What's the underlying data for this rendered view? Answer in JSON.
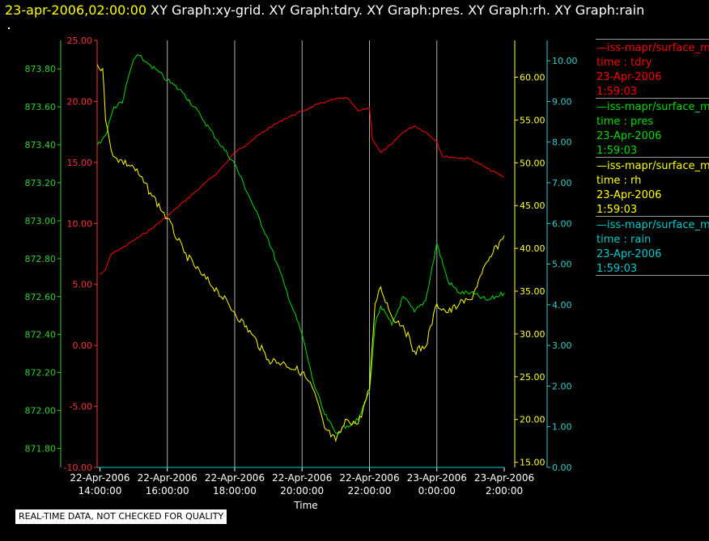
{
  "header": {
    "timestamp": "23-apr-2006,02:00:00",
    "plots": " XY Graph:xy-grid.  XY Graph:tdry.  XY Graph:pres.  XY Graph:rh.  XY Graph:rain"
  },
  "footer": {
    "quality_notice": "REAL-TIME DATA, NOT CHECKED FOR QUALITY"
  },
  "chart_data": {
    "type": "line",
    "title": "",
    "xlabel": "Time",
    "x_ticks": [
      "22-Apr-2006 14:00:00",
      "22-Apr-2006 16:00:00",
      "22-Apr-2006 18:00:00",
      "22-Apr-2006 20:00:00",
      "22-Apr-2006 22:00:00",
      "23-Apr-2006 0:00:00",
      "23-Apr-2006 2:00:00"
    ],
    "x_tick_date": [
      "22-Apr-2006",
      "22-Apr-2006",
      "22-Apr-2006",
      "22-Apr-2006",
      "22-Apr-2006",
      "23-Apr-2006",
      "23-Apr-2006"
    ],
    "x_tick_time": [
      "14:00:00",
      "16:00:00",
      "18:00:00",
      "20:00:00",
      "22:00:00",
      "0:00:00",
      "2:00:00"
    ],
    "x_range": [
      "22-Apr-2006 13:55",
      "23-Apr-2006 2:00"
    ],
    "grid": "vertical lines at x ticks",
    "axes": {
      "tdry": {
        "color": "#ff3333",
        "range": [
          -10,
          25
        ],
        "ticks": [
          "-10.00",
          "-5.00",
          "0.00",
          "5.00",
          "10.00",
          "15.00",
          "20.00",
          "25.00"
        ]
      },
      "pres": {
        "color": "#33cc33",
        "range": [
          871.7,
          873.95
        ],
        "ticks": [
          "871.80",
          "872.00",
          "872.20",
          "872.40",
          "872.60",
          "872.80",
          "873.00",
          "873.20",
          "873.40",
          "873.60",
          "873.80"
        ]
      },
      "rh": {
        "color": "#ffff33",
        "range": [
          14.4,
          64.3
        ],
        "ticks": [
          "15.00",
          "20.00",
          "25.00",
          "30.00",
          "35.00",
          "40.00",
          "45.00",
          "50.00",
          "55.00",
          "60.00"
        ]
      },
      "rain": {
        "color": "#33cccc",
        "range": [
          0,
          10.5
        ],
        "ticks": [
          "0.00",
          "1.00",
          "2.00",
          "3.00",
          "4.00",
          "5.00",
          "6.00",
          "7.00",
          "8.00",
          "9.00",
          "10.00"
        ]
      }
    },
    "series": [
      {
        "name": "tdry",
        "axis": "tdry",
        "color": "#ff0000",
        "x": [
          "22-Apr-2006 14:00",
          "22-Apr-2006 14:10",
          "22-Apr-2006 14:20",
          "22-Apr-2006 14:40",
          "22-Apr-2006 15:00",
          "22-Apr-2006 15:30",
          "22-Apr-2006 16:00",
          "22-Apr-2006 16:30",
          "22-Apr-2006 17:00",
          "22-Apr-2006 17:30",
          "22-Apr-2006 18:00",
          "22-Apr-2006 18:30",
          "22-Apr-2006 19:00",
          "22-Apr-2006 19:30",
          "22-Apr-2006 20:00",
          "22-Apr-2006 20:30",
          "22-Apr-2006 21:00",
          "22-Apr-2006 21:20",
          "22-Apr-2006 21:40",
          "22-Apr-2006 22:00",
          "22-Apr-2006 22:05",
          "22-Apr-2006 22:20",
          "22-Apr-2006 22:40",
          "22-Apr-2006 23:00",
          "22-Apr-2006 23:20",
          "22-Apr-2006 23:40",
          "23-Apr-2006 0:00",
          "23-Apr-2006 0:10",
          "23-Apr-2006 0:30",
          "23-Apr-2006 1:00",
          "23-Apr-2006 1:30",
          "23-Apr-2006 2:00"
        ],
        "values": [
          5.8,
          6.2,
          7.5,
          8.0,
          8.6,
          9.5,
          10.6,
          11.8,
          13.0,
          14.2,
          15.8,
          16.8,
          17.8,
          18.6,
          19.2,
          19.8,
          20.2,
          20.3,
          19.2,
          19.5,
          17.0,
          15.8,
          16.5,
          17.5,
          18.0,
          17.5,
          16.7,
          15.5,
          15.4,
          15.3,
          14.5,
          13.8
        ]
      },
      {
        "name": "pres",
        "axis": "pres",
        "color": "#00dd00",
        "x": [
          "22-Apr-2006 13:55",
          "22-Apr-2006 14:10",
          "22-Apr-2006 14:25",
          "22-Apr-2006 14:40",
          "22-Apr-2006 14:50",
          "22-Apr-2006 15:00",
          "22-Apr-2006 15:10",
          "22-Apr-2006 15:20",
          "22-Apr-2006 15:30",
          "22-Apr-2006 16:00",
          "22-Apr-2006 16:30",
          "22-Apr-2006 17:00",
          "22-Apr-2006 17:30",
          "22-Apr-2006 18:00",
          "22-Apr-2006 18:30",
          "22-Apr-2006 19:00",
          "22-Apr-2006 19:30",
          "22-Apr-2006 20:00",
          "22-Apr-2006 20:20",
          "22-Apr-2006 20:40",
          "22-Apr-2006 21:00",
          "22-Apr-2006 21:20",
          "22-Apr-2006 21:40",
          "22-Apr-2006 22:00",
          "22-Apr-2006 22:10",
          "22-Apr-2006 22:20",
          "22-Apr-2006 22:40",
          "22-Apr-2006 23:00",
          "22-Apr-2006 23:20",
          "22-Apr-2006 23:40",
          "23-Apr-2006 0:00",
          "23-Apr-2006 0:20",
          "23-Apr-2006 0:40",
          "23-Apr-2006 1:00",
          "23-Apr-2006 1:30",
          "23-Apr-2006 2:00"
        ],
        "values": [
          873.4,
          873.45,
          873.6,
          873.62,
          873.75,
          873.85,
          873.87,
          873.84,
          873.82,
          873.74,
          873.67,
          873.55,
          873.42,
          873.3,
          873.1,
          872.9,
          872.65,
          872.4,
          872.15,
          871.98,
          871.88,
          871.92,
          871.95,
          872.1,
          872.45,
          872.55,
          872.45,
          872.6,
          872.52,
          872.58,
          872.88,
          872.68,
          872.62,
          872.62,
          872.58,
          872.62
        ]
      },
      {
        "name": "rh",
        "axis": "rh",
        "color": "#ffff00",
        "x": [
          "22-Apr-2006 13:55",
          "22-Apr-2006 14:05",
          "22-Apr-2006 14:10",
          "22-Apr-2006 14:20",
          "22-Apr-2006 14:30",
          "22-Apr-2006 15:00",
          "22-Apr-2006 15:30",
          "22-Apr-2006 16:00",
          "22-Apr-2006 16:30",
          "22-Apr-2006 17:00",
          "22-Apr-2006 17:30",
          "22-Apr-2006 18:00",
          "22-Apr-2006 18:30",
          "22-Apr-2006 19:00",
          "22-Apr-2006 19:30",
          "22-Apr-2006 20:00",
          "22-Apr-2006 20:20",
          "22-Apr-2006 20:40",
          "22-Apr-2006 21:00",
          "22-Apr-2006 21:20",
          "22-Apr-2006 21:40",
          "22-Apr-2006 22:00",
          "22-Apr-2006 22:10",
          "22-Apr-2006 22:20",
          "22-Apr-2006 22:40",
          "22-Apr-2006 23:00",
          "22-Apr-2006 23:20",
          "22-Apr-2006 23:40",
          "23-Apr-2006 0:00",
          "23-Apr-2006 0:20",
          "23-Apr-2006 0:40",
          "23-Apr-2006 1:00",
          "23-Apr-2006 1:20",
          "23-Apr-2006 1:40",
          "23-Apr-2006 2:00"
        ],
        "values": [
          61.5,
          61.0,
          55.0,
          51.5,
          50.5,
          49.5,
          46.5,
          43.5,
          39.5,
          37.0,
          35.0,
          32.5,
          30.0,
          27.0,
          26.5,
          25.5,
          23.5,
          19.0,
          17.5,
          20.0,
          19.5,
          23.5,
          33.5,
          35.5,
          32.0,
          31.0,
          28.0,
          28.5,
          33.5,
          32.5,
          33.5,
          34.0,
          37.0,
          39.5,
          41.5
        ]
      },
      {
        "name": "rain",
        "axis": "rain",
        "color": "#00cccc",
        "x": [
          "22-Apr-2006 13:55",
          "23-Apr-2006 2:00"
        ],
        "values": [
          0.0,
          0.0
        ]
      }
    ]
  },
  "legend": [
    {
      "id": "tdry",
      "color": "#ff0000",
      "line1": "—iss-mapr/surface_m",
      "line2": "time : tdry",
      "line3": "23-Apr-2006",
      "line4": "1:59:03"
    },
    {
      "id": "pres",
      "color": "#00dd00",
      "line1": "—iss-mapr/surface_m",
      "line2": "time : pres",
      "line3": "23-Apr-2006",
      "line4": "1:59:03"
    },
    {
      "id": "rh",
      "color": "#ffff00",
      "line1": "—iss-mapr/surface_m",
      "line2": "time : rh",
      "line3": "23-Apr-2006",
      "line4": "1:59:03"
    },
    {
      "id": "rain",
      "color": "#00cccc",
      "line1": "—iss-mapr/surface_m",
      "line2": "time : rain",
      "line3": "23-Apr-2006",
      "line4": "1:59:03"
    }
  ]
}
